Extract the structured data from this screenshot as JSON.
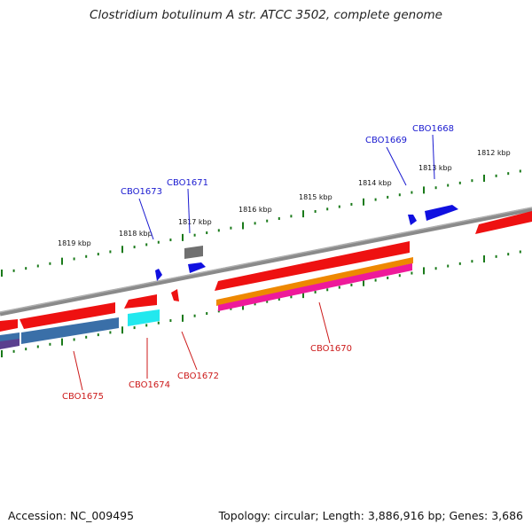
{
  "title": "Clostridium botulinum A str. ATCC 3502, complete genome",
  "footer": {
    "accession": "Accession: NC_009495",
    "topology": "Topology: circular; Length: 3,886,916 bp; Genes: 3,686"
  },
  "scale_labels": [
    "1819 kbp",
    "1818 kbp",
    "1817 kbp",
    "1816 kbp",
    "1815 kbp",
    "1814 kbp",
    "1813 kbp",
    "1812 kbp"
  ],
  "genes_top": [
    "CBO1673",
    "CBO1671",
    "CBO1669",
    "CBO1668"
  ],
  "genes_bottom": [
    "CBO1675",
    "CBO1674",
    "CBO1672",
    "CBO1670"
  ],
  "colors": {
    "backbone": "#808080",
    "tick": "#1a7a1a",
    "forward_feature": "#1010e0",
    "reverse_feature": "#ee1111",
    "orange_feature": "#ee8800",
    "magenta_feature": "#ee1a9a",
    "cyan_feature": "#22e8ee",
    "steelblue_feature": "#3a6fa8",
    "purple_feature": "#5a3f8f",
    "gray_feature": "#707070",
    "label_forward": "#1a1ad0",
    "label_reverse": "#cc1a1a"
  }
}
